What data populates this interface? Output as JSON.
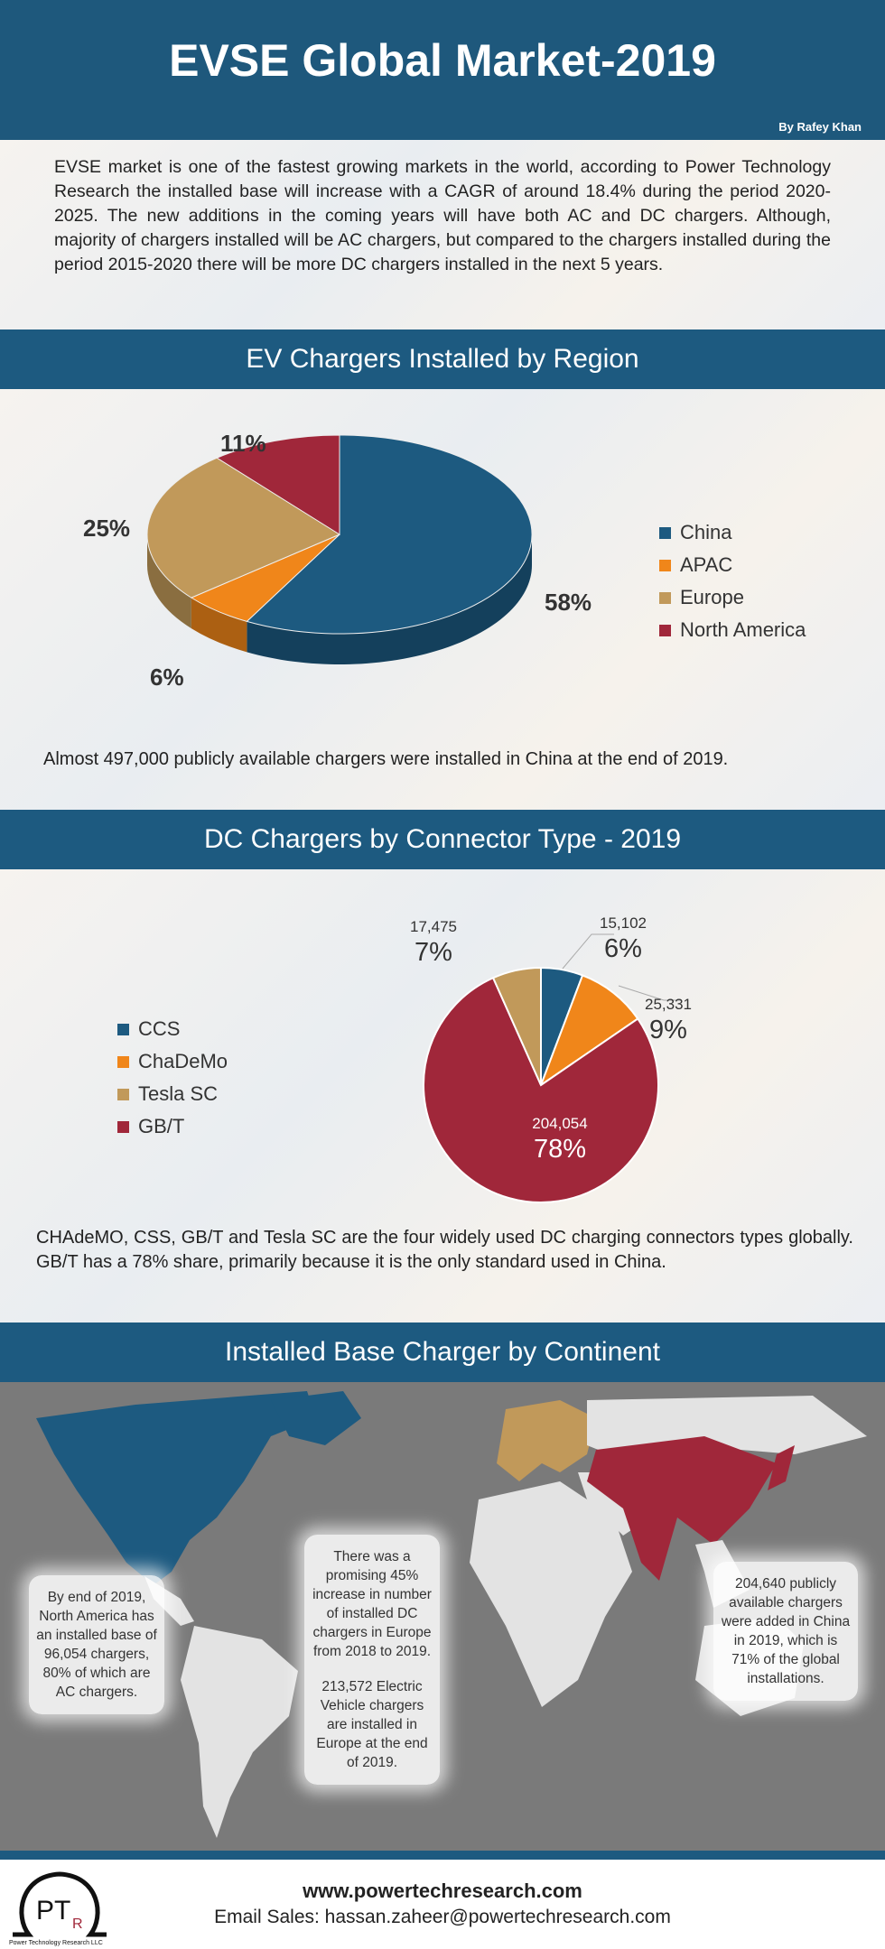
{
  "header": {
    "title": "EVSE Global Market-2019",
    "byline": "By Rafey Khan"
  },
  "intro": "EVSE market is one of the fastest growing markets in the world, according to Power Technology Research the installed base will increase with a CAGR of around 18.4% during the period 2020-2025. The new additions in the coming years will have both AC and DC chargers. Although, majority of chargers installed will be AC chargers, but compared to the chargers installed during the period 2015-2020 there will be more DC chargers installed in the next 5 years.",
  "sections": {
    "region": "EV Chargers Installed by Region",
    "connector": "DC Chargers by Connector Type - 2019",
    "continent": "Installed Base Charger by Continent"
  },
  "captions": {
    "region": "Almost 497,000 publicly available chargers were installed in China at the end of 2019.",
    "connector": "CHAdeMO, CSS, GB/T and Tesla SC are the four widely used DC charging connectors types globally. GB/T has a 78% share, primarily because it is the only standard used in China."
  },
  "chart_data": [
    {
      "type": "pie",
      "style": "3d",
      "categories": [
        "China",
        "APAC",
        "Europe",
        "North America"
      ],
      "values": [
        58,
        6,
        25,
        11
      ],
      "labels": [
        "58%",
        "6%",
        "25%",
        "11%"
      ],
      "colors": [
        "#1d5a80",
        "#f0861a",
        "#c1995a",
        "#a0273a"
      ],
      "legend": "right"
    },
    {
      "type": "pie",
      "categories": [
        "CCS",
        "ChaDeMo",
        "GB/T",
        "Tesla SC"
      ],
      "values": [
        15102,
        25331,
        204054,
        17475
      ],
      "percent_labels": [
        "6%",
        "9%",
        "78%",
        "7%"
      ],
      "value_labels": [
        "15,102",
        "25,331",
        "204,054",
        "17,475"
      ],
      "colors": [
        "#1d5a80",
        "#f0861a",
        "#a0273a",
        "#c1995a"
      ],
      "legend_order": [
        "CCS",
        "ChaDeMo",
        "Tesla SC",
        "GB/T"
      ],
      "legend": "left"
    }
  ],
  "map": {
    "notes": {
      "north_america": "By end of 2019, North America has an installed base of 96,054 chargers, 80% of which are AC chargers.",
      "europe_1": "There was a promising 45% increase in number of installed DC chargers in Europe from 2018 to 2019.",
      "europe_2": "213,572 Electric Vehicle chargers are installed in Europe at the end of 2019.",
      "china": "204,640 publicly available chargers were added in China in 2019, which is 71% of the global installations."
    },
    "colors": {
      "north_america": "#1d5a80",
      "europe": "#c1995a",
      "asia": "#a0273a",
      "other": "#e3e3e3",
      "background": "#7a7a7a"
    }
  },
  "footer": {
    "website": "www.powertechresearch.com",
    "email": "Email Sales: hassan.zaheer@powertechresearch.com",
    "logo": "PTR",
    "logo_caption": "Power Technology Research LLC"
  }
}
